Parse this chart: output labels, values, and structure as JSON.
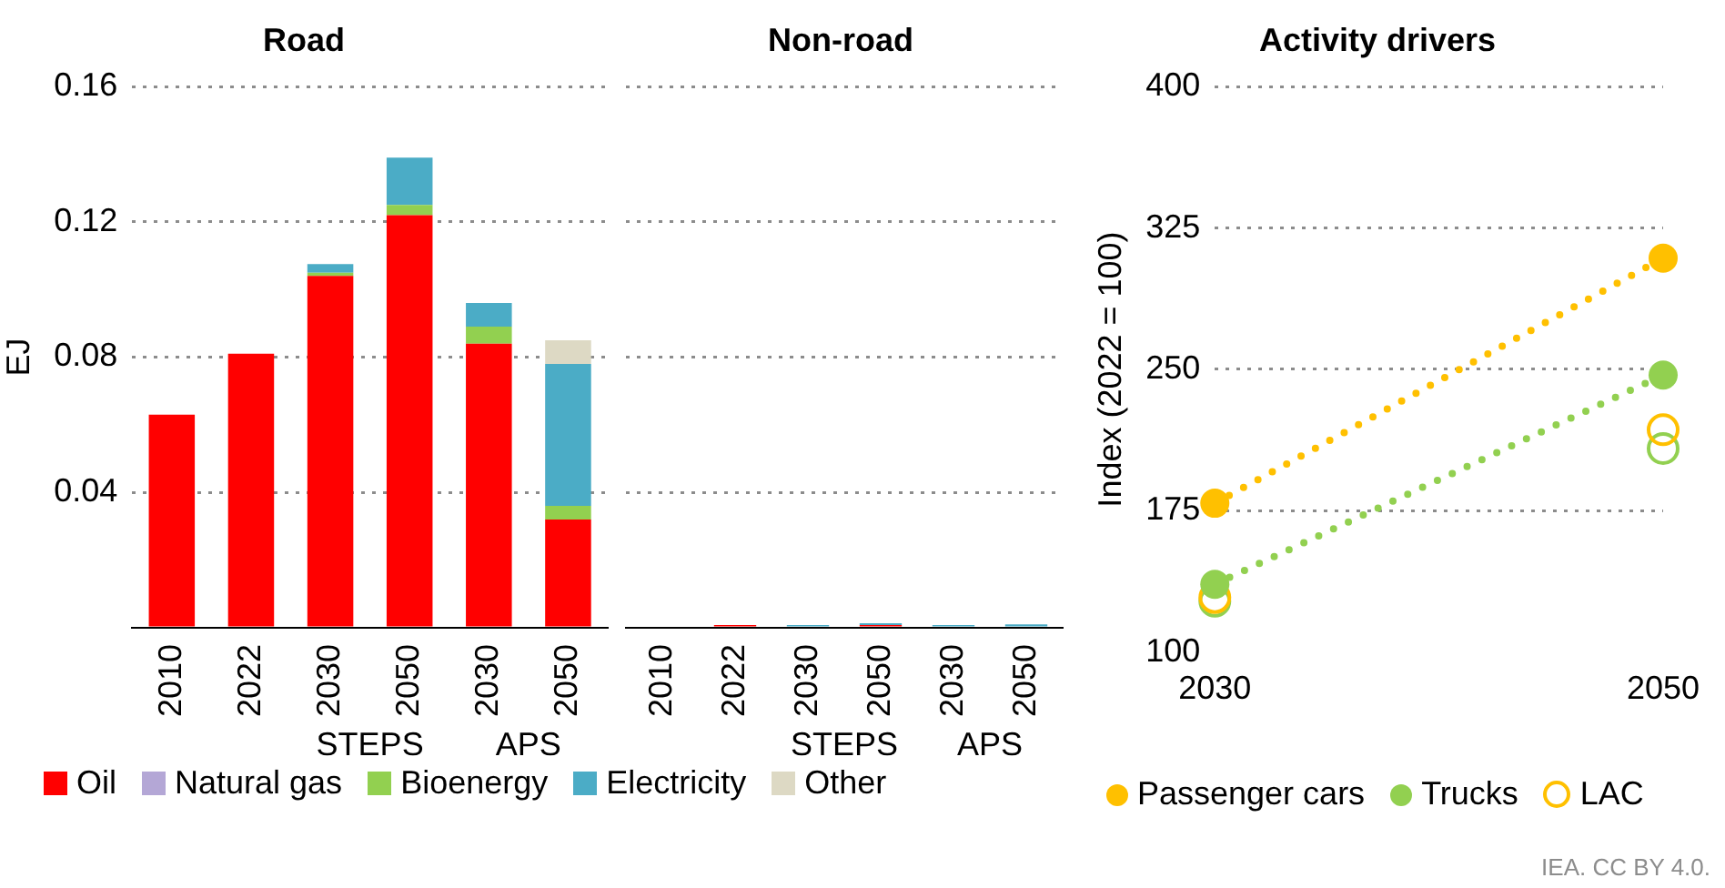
{
  "chart_data": [
    {
      "type": "bar",
      "title": "Road",
      "ylabel": "EJ",
      "stacked": true,
      "grid": "y",
      "legend": "bottom",
      "categories": [
        "2010",
        "2022",
        "2030",
        "2050",
        "2030",
        "2050"
      ],
      "annotations": [
        "STEPS",
        "APS"
      ],
      "ylim": [
        0,
        0.16
      ],
      "yticks": [
        {
          "value": 0,
          "label": null
        },
        0.04,
        0.08,
        0.12,
        0.16
      ],
      "series": [
        {
          "name": "Oil",
          "color": "#ff0000",
          "values": [
            0.063,
            0.081,
            0.104,
            0.122,
            0.084,
            0.032
          ]
        },
        {
          "name": "Natural gas",
          "color": "#b4a7d6",
          "values": [
            0,
            0,
            0,
            0,
            0,
            0
          ]
        },
        {
          "name": "Bioenergy",
          "color": "#92d050",
          "values": [
            0,
            0,
            0.001,
            0.003,
            0.005,
            0.004
          ]
        },
        {
          "name": "Electricity",
          "color": "#4bacc6",
          "values": [
            0,
            0,
            0.0025,
            0.014,
            0.007,
            0.042
          ]
        },
        {
          "name": "Other",
          "color": "#ddd9c4",
          "values": [
            0,
            0,
            0,
            0,
            0,
            0.007
          ]
        }
      ]
    },
    {
      "type": "bar",
      "title": "Non-road",
      "stacked": true,
      "grid": "y",
      "tick_labels": "x",
      "categories": [
        "2010",
        "2022",
        "2030",
        "2050",
        "2030",
        "2050"
      ],
      "annotations": [
        "STEPS",
        "APS"
      ],
      "ylim": [
        0,
        0.16
      ],
      "yticks": [
        0,
        0.04,
        0.08,
        0.12,
        0.16
      ],
      "series": [
        {
          "color": "#ff0000",
          "values": [
            0,
            0.0008,
            0,
            0.0008,
            0,
            0
          ]
        },
        {
          "color": "#b4a7d6",
          "values": [
            0,
            0,
            0,
            0,
            0,
            0
          ]
        },
        {
          "color": "#92d050",
          "values": [
            0,
            0,
            0,
            0,
            0,
            0
          ]
        },
        {
          "color": "#4bacc6",
          "values": [
            0,
            0,
            0.0008,
            0.0005,
            0.0008,
            0.001
          ]
        },
        {
          "color": "#ddd9c4",
          "values": [
            0,
            0,
            0,
            0,
            0,
            0
          ]
        }
      ]
    },
    {
      "type": "line",
      "title": "Activity drivers",
      "ylabel": "Index (2022 = 100)",
      "grid": "y",
      "legend": "bottom",
      "marker": "circle",
      "line_style": "dotted",
      "x": [
        2030,
        2050
      ],
      "xlim": [
        2030,
        2050
      ],
      "xticks": [
        2030,
        2050
      ],
      "ylim": [
        100,
        400
      ],
      "yticks": [
        100,
        175,
        250,
        325,
        400
      ],
      "annotations": [
        "IEA. CC BY 4.0."
      ],
      "series": [
        {
          "name": "Passenger cars",
          "color": "#ffc000",
          "values": [
            179,
            309
          ]
        },
        {
          "name": "Trucks",
          "color": "#92d050",
          "values": [
            136,
            247
          ]
        },
        {
          "name": "LAC",
          "type": "scatter",
          "color": "#ffc000",
          "values": [
            129,
            218
          ]
        },
        {
          "type": "scatter",
          "color": "#92d050",
          "values": [
            127,
            208
          ]
        }
      ]
    }
  ]
}
